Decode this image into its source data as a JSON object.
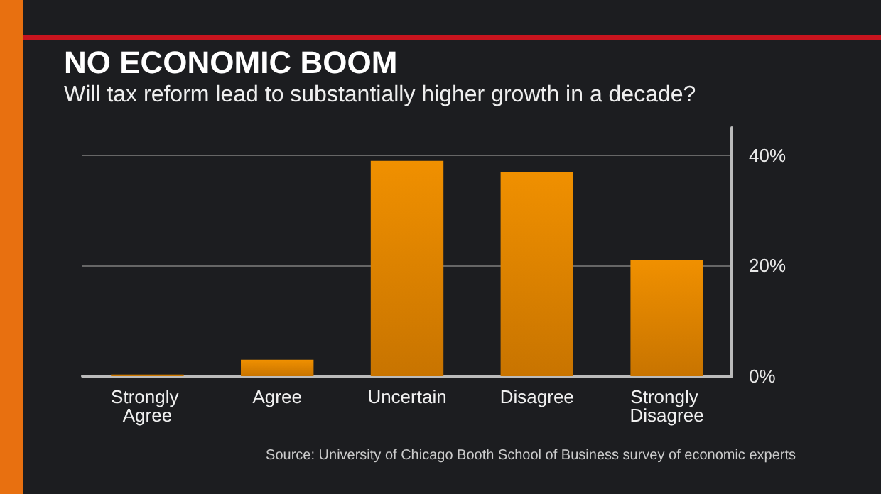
{
  "chart_data": {
    "type": "bar",
    "title": "NO ECONOMIC BOOM",
    "subtitle": "Will tax reform lead to substantially higher growth in a decade?",
    "categories": [
      "Strongly Agree",
      "Agree",
      "Uncertain",
      "Disagree",
      "Strongly Disagree"
    ],
    "values": [
      0.3,
      3,
      39,
      37,
      21
    ],
    "color": "#f09000",
    "ylim": [
      0,
      45
    ],
    "yticks": [
      {
        "value": 0,
        "label": "0%"
      },
      {
        "value": 20,
        "label": "20%"
      },
      {
        "value": 40,
        "label": "40%"
      }
    ],
    "grid": "y",
    "annotations": [
      "Source: University of Chicago Booth School of Business survey of economic experts"
    ]
  }
}
